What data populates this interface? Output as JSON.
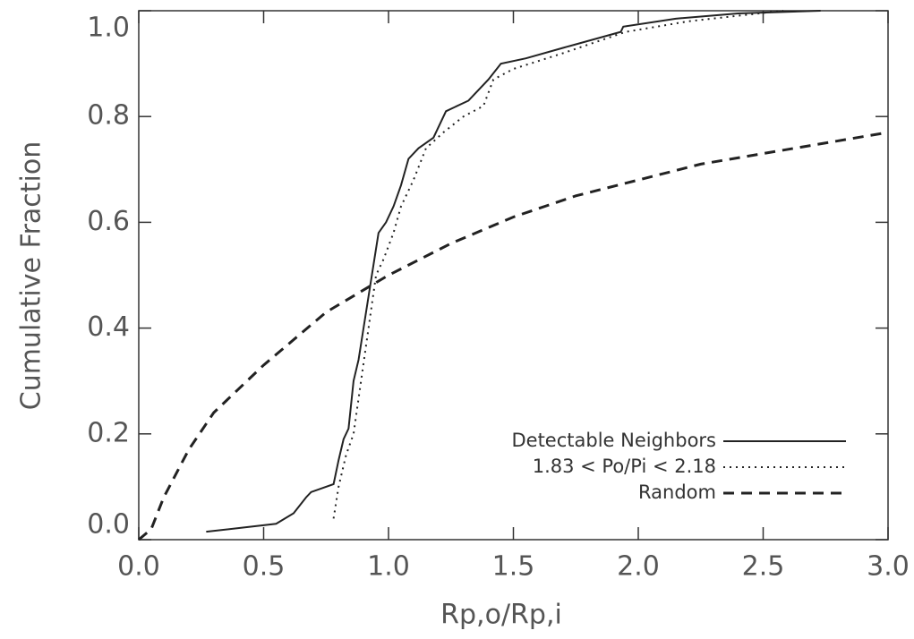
{
  "chart_data": {
    "type": "line",
    "xlabel": "Rp,o/Rp,i",
    "ylabel": "Cumulative Fraction",
    "xlim": [
      0,
      3.0
    ],
    "ylim": [
      0,
      1.0
    ],
    "xticks": [
      {
        "value": 0,
        "label": "0.0"
      },
      0.5,
      {
        "value": 1,
        "label": "1.0"
      },
      1.5,
      {
        "value": 2,
        "label": "2.0"
      },
      2.5,
      {
        "value": 3,
        "label": "3.0"
      }
    ],
    "yticks": [
      {
        "value": 0,
        "label": "0.0"
      },
      0.2,
      0.4,
      0.6,
      0.8,
      {
        "value": 1,
        "label": "1.0"
      }
    ],
    "legend": "lower right",
    "series": [
      {
        "name": "Detectable Neighbors",
        "color": "#222222",
        "dash": "solid",
        "x": [
          0.27,
          0.55,
          0.62,
          0.67,
          0.69,
          0.78,
          0.8,
          0.82,
          0.84,
          0.86,
          0.88,
          0.9,
          0.92,
          0.94,
          0.96,
          0.99,
          1.02,
          1.05,
          1.08,
          1.12,
          1.18,
          1.23,
          1.32,
          1.4,
          1.45,
          1.55,
          1.7,
          1.93,
          1.94,
          2.15,
          2.4,
          2.73
        ],
        "values": [
          0.015,
          0.03,
          0.05,
          0.08,
          0.09,
          0.105,
          0.15,
          0.19,
          0.21,
          0.3,
          0.34,
          0.4,
          0.46,
          0.52,
          0.58,
          0.6,
          0.63,
          0.67,
          0.72,
          0.74,
          0.76,
          0.81,
          0.83,
          0.87,
          0.9,
          0.91,
          0.93,
          0.96,
          0.97,
          0.985,
          0.995,
          1.0
        ]
      },
      {
        "name": "1.83 < Po/Pi < 2.18",
        "color": "#222222",
        "dash": "dotted",
        "x": [
          0.78,
          0.8,
          0.83,
          0.86,
          0.89,
          0.92,
          0.95,
          0.98,
          1.02,
          1.05,
          1.1,
          1.15,
          1.22,
          1.3,
          1.38,
          1.42,
          1.5,
          1.7,
          1.95,
          2.2,
          2.58
        ],
        "values": [
          0.04,
          0.1,
          0.16,
          0.2,
          0.3,
          0.4,
          0.5,
          0.53,
          0.58,
          0.63,
          0.68,
          0.74,
          0.77,
          0.8,
          0.82,
          0.87,
          0.89,
          0.92,
          0.96,
          0.98,
          1.0
        ]
      },
      {
        "name": "Random",
        "color": "#222222",
        "dash": "dashed",
        "x": [
          0.0,
          0.05,
          0.1,
          0.2,
          0.3,
          0.5,
          0.75,
          1.0,
          1.25,
          1.5,
          1.75,
          2.0,
          2.25,
          2.5,
          2.75,
          3.0
        ],
        "values": [
          0.0,
          0.02,
          0.08,
          0.17,
          0.24,
          0.33,
          0.43,
          0.5,
          0.56,
          0.61,
          0.65,
          0.68,
          0.71,
          0.73,
          0.75,
          0.77
        ]
      }
    ]
  }
}
